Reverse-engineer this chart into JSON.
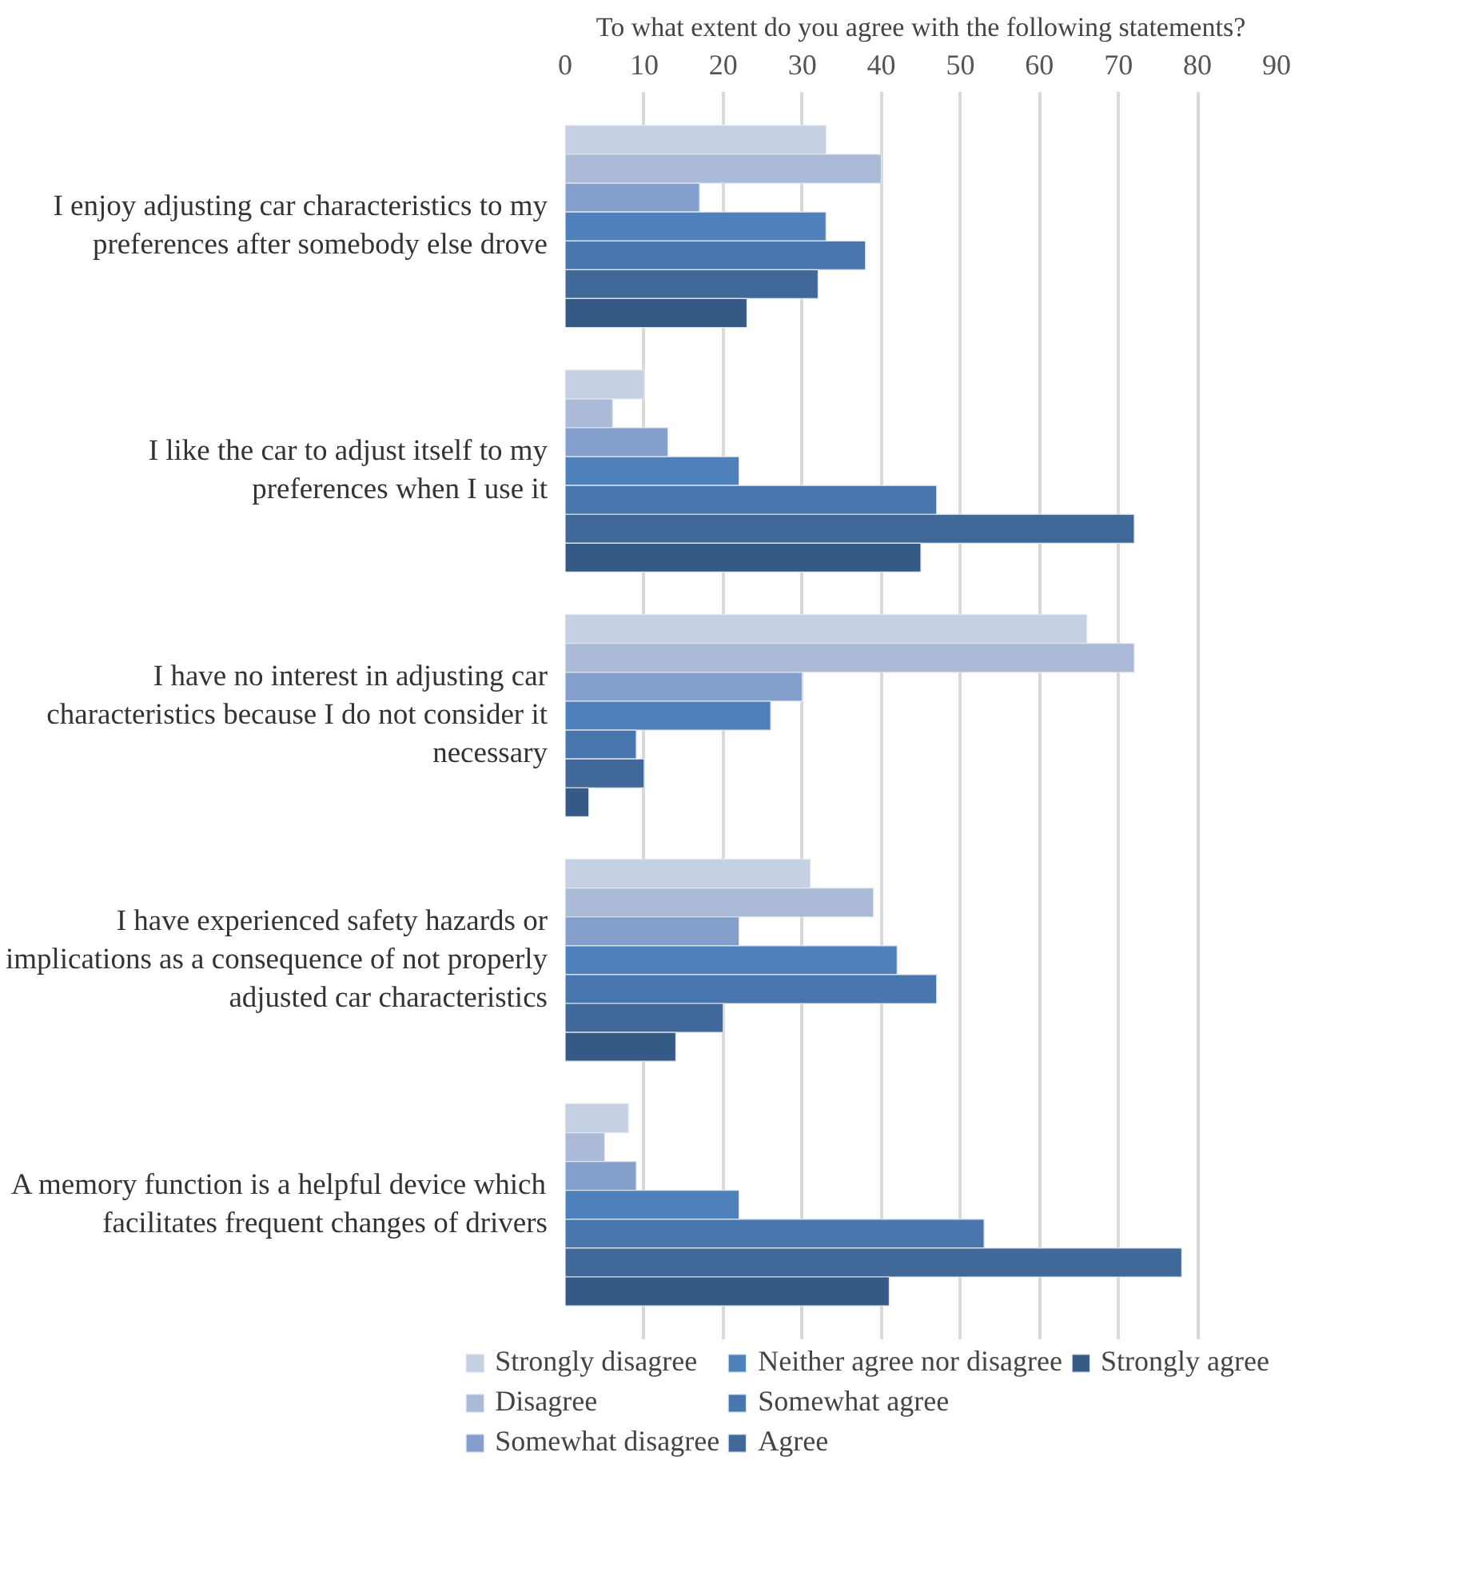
{
  "chart_data": {
    "type": "bar",
    "orientation": "horizontal",
    "title": "To what extent do you agree with the following statements?",
    "categories": [
      "I enjoy adjusting car characteristics to my preferences after somebody else drove",
      "I like the car to adjust itself to my preferences when I use it",
      "I have no interest in adjusting car characteristics because I do not consider it necessary",
      "I have experienced safety hazards or implications as a consequence of not properly adjusted car characteristics",
      "A memory function is a helpful device which facilitates frequent changes of drivers"
    ],
    "series": [
      {
        "name": "Strongly disagree",
        "color": "#c5d0e2",
        "values": [
          33,
          10,
          66,
          31,
          8
        ]
      },
      {
        "name": "Disagree",
        "color": "#aabad7",
        "values": [
          40,
          6,
          72,
          39,
          5
        ]
      },
      {
        "name": "Somewhat disagree",
        "color": "#849fcb",
        "values": [
          17,
          13,
          30,
          22,
          9
        ]
      },
      {
        "name": "Neither agree nor disagree",
        "color": "#4e80bc",
        "values": [
          33,
          22,
          26,
          42,
          22
        ]
      },
      {
        "name": "Somewhat agree",
        "color": "#4876ad",
        "values": [
          38,
          47,
          9,
          47,
          53
        ]
      },
      {
        "name": "Agree",
        "color": "#406899",
        "values": [
          32,
          72,
          10,
          20,
          78
        ]
      },
      {
        "name": "Strongly agree",
        "color": "#365a86",
        "values": [
          23,
          45,
          3,
          14,
          41
        ]
      }
    ],
    "xlim": [
      0,
      90
    ],
    "xticks": [
      0,
      10,
      20,
      30,
      40,
      50,
      60,
      70,
      80,
      90
    ],
    "grid": "x",
    "legend": "bottom"
  }
}
